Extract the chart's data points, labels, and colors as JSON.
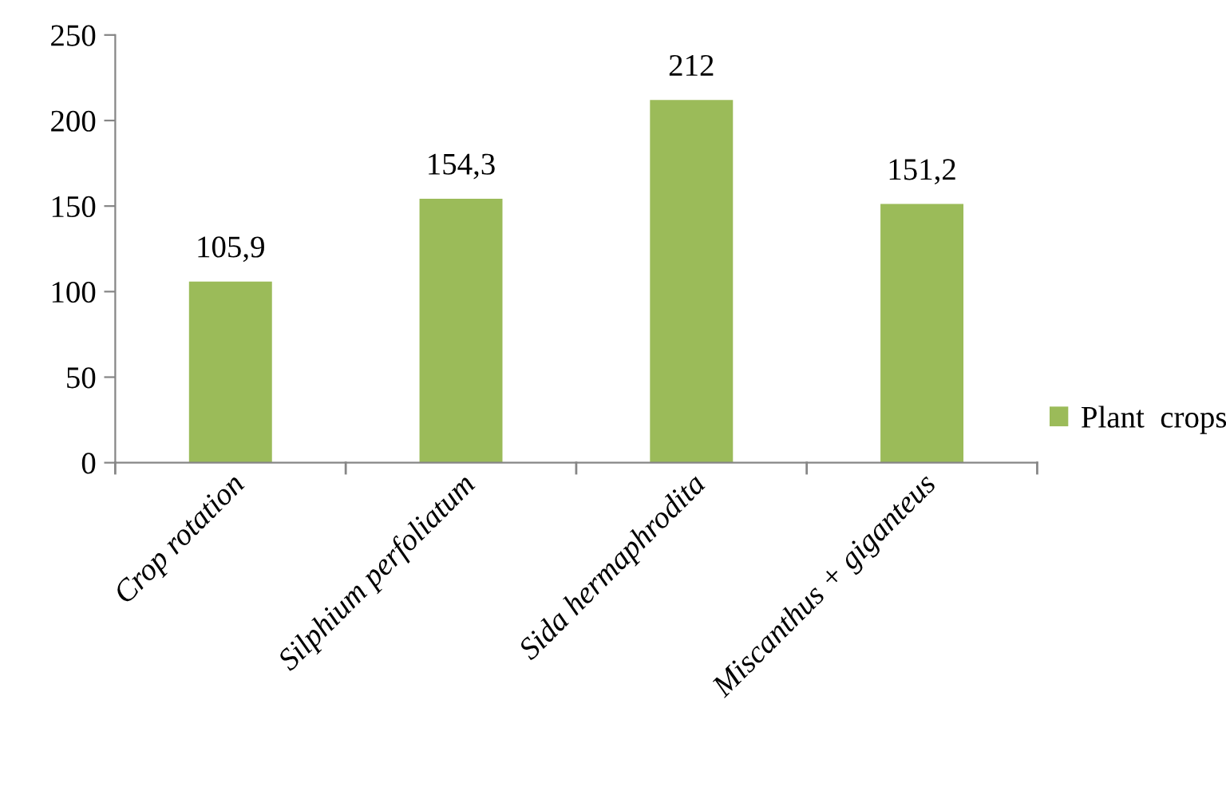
{
  "chart_data": {
    "type": "bar",
    "categories": [
      "Crop rotation",
      "Silphium perfoliatum",
      "Sida hermaphrodita",
      "Miscanthus + giganteus"
    ],
    "series": [
      {
        "name": "Plant  crops",
        "color": "#9bbb59",
        "values": [
          105.9,
          154.3,
          212,
          151.2
        ],
        "value_labels": [
          "105,9",
          "154,3",
          "212",
          "151,2"
        ]
      }
    ],
    "ylim": [
      0,
      250
    ],
    "yticks": [
      0,
      50,
      100,
      150,
      200,
      250
    ],
    "grid": false,
    "legend": "right"
  }
}
